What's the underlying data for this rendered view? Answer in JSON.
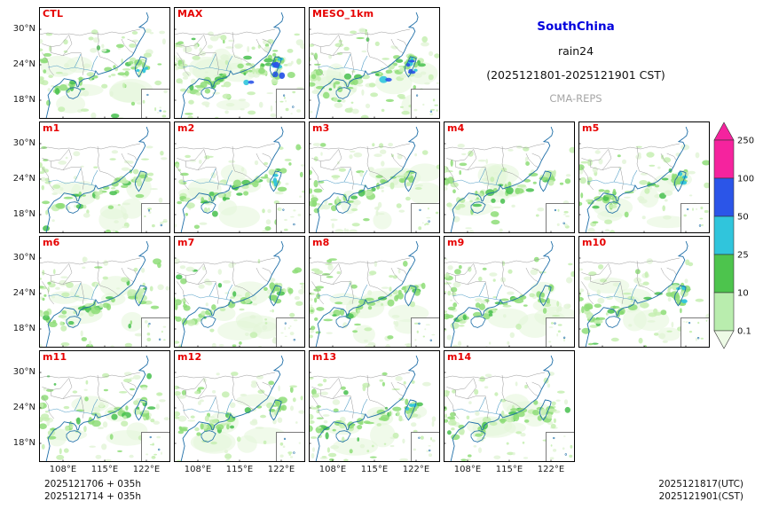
{
  "title": {
    "region": "SouthChina",
    "variable": "rain24",
    "period": "(2025121801-2025121901 CST)",
    "system": "CMA-REPS"
  },
  "colors": {
    "panel_label": "#E60000",
    "region_title": "#0000DD",
    "system_text": "#A6A6A6"
  },
  "panels": [
    {
      "label": "CTL",
      "row": 0,
      "col": 0
    },
    {
      "label": "MAX",
      "row": 0,
      "col": 1
    },
    {
      "label": "MESO_1km",
      "row": 0,
      "col": 2
    },
    {
      "label": "m1",
      "row": 1,
      "col": 0
    },
    {
      "label": "m2",
      "row": 1,
      "col": 1
    },
    {
      "label": "m3",
      "row": 1,
      "col": 2
    },
    {
      "label": "m4",
      "row": 1,
      "col": 3
    },
    {
      "label": "m5",
      "row": 1,
      "col": 4
    },
    {
      "label": "m6",
      "row": 2,
      "col": 0
    },
    {
      "label": "m7",
      "row": 2,
      "col": 1
    },
    {
      "label": "m8",
      "row": 2,
      "col": 2
    },
    {
      "label": "m9",
      "row": 2,
      "col": 3
    },
    {
      "label": "m10",
      "row": 2,
      "col": 4
    },
    {
      "label": "m11",
      "row": 3,
      "col": 0
    },
    {
      "label": "m12",
      "row": 3,
      "col": 1
    },
    {
      "label": "m13",
      "row": 3,
      "col": 2
    },
    {
      "label": "m14",
      "row": 3,
      "col": 3
    }
  ],
  "axes": {
    "lat_ticks": [
      "30°N",
      "24°N",
      "18°N"
    ],
    "lon_ticks": [
      "108°E",
      "115°E",
      "122°E"
    ]
  },
  "colorbar": {
    "tick_labels": [
      "250",
      "100",
      "50",
      "25",
      "10",
      "0.1"
    ],
    "segment_colors_top_to_bottom": [
      "#F5239E",
      "#2B55E8",
      "#30C5DC",
      "#4DC44D",
      "#B9EDAE"
    ],
    "arrow_top_color": "#F5239E",
    "arrow_bottom_color": "#EDFAE6"
  },
  "footer_left": [
    "2025121706 + 035h",
    "2025121714 + 035h"
  ],
  "footer_right": [
    "2025121817(UTC)",
    "2025121901(CST)"
  ]
}
